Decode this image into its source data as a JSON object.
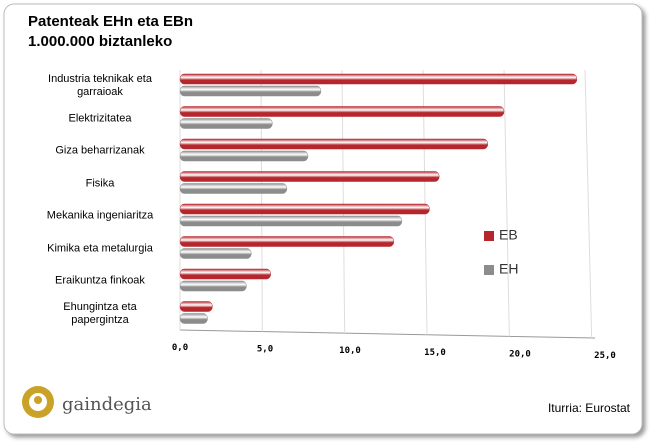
{
  "chart_data": {
    "type": "hbar3d",
    "title": "Patenteak EHn eta EBn",
    "subtitle": "1.000.000 biztanleko",
    "categories": [
      "Industria teknikak eta garraioak",
      "Elektrizitatea",
      "Giza beharrizanak",
      "Fisika",
      "Mekanika ingeniaritza",
      "Kimika eta metalurgia",
      "Eraikuntza finkoak",
      "Ehungintza eta papergintza"
    ],
    "series": [
      {
        "name": "EB",
        "color": "#b5272d",
        "values": [
          24.5,
          20.0,
          19.0,
          16.0,
          15.4,
          13.2,
          5.6,
          2.0
        ]
      },
      {
        "name": "EH",
        "color": "#8c8c8c",
        "values": [
          8.7,
          5.7,
          7.9,
          6.6,
          13.7,
          4.4,
          4.1,
          1.7
        ]
      }
    ],
    "xlim": [
      0,
      25
    ],
    "xticks": [
      {
        "value": 0,
        "label": "0,0"
      },
      {
        "value": 5,
        "label": "5,0"
      },
      {
        "value": 10,
        "label": "10,0"
      },
      {
        "value": 15,
        "label": "15,0"
      },
      {
        "value": 20,
        "label": "20,0"
      },
      {
        "value": 25,
        "label": "25,0"
      }
    ],
    "grid": true,
    "legend": "right",
    "source": "Iturria: Eurostat",
    "logo_text": "gaindegia"
  }
}
